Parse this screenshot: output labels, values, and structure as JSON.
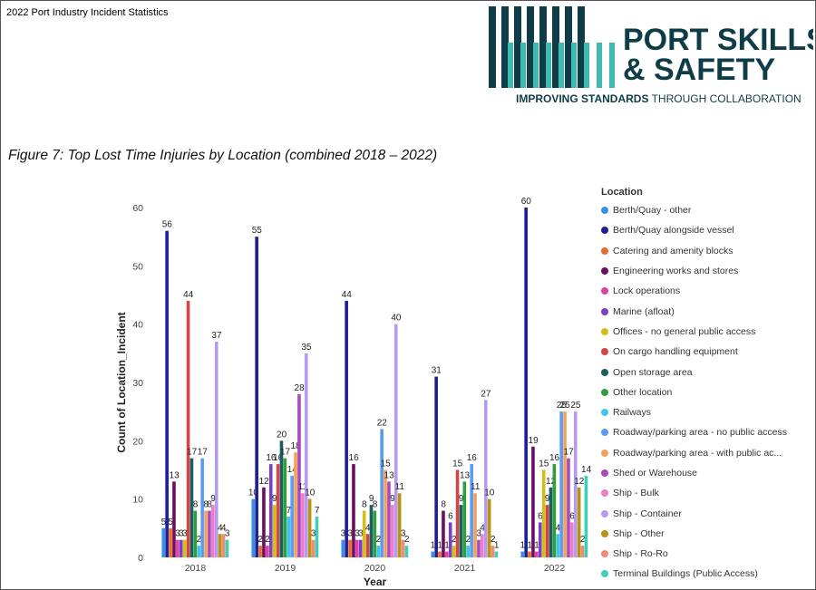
{
  "page": {
    "title": "2022 Port Industry Incident Statistics",
    "figure_caption": "Figure 7: Top Lost Time Injuries by Location (combined 2018 – 2022)"
  },
  "logo": {
    "line1": "PORT SKILLS",
    "line2": "& SAFETY",
    "tagline_bold": "IMPROVING STANDARDS",
    "tagline_rest": " THROUGH COLLABORATION",
    "colors": {
      "dark": "#0f3d47",
      "teal": "#41b8b0"
    }
  },
  "chart_data": {
    "type": "bar",
    "xlabel": "Year",
    "ylabel": "Count of Location_Incident",
    "ylim": [
      0,
      60
    ],
    "yticks": [
      0,
      10,
      20,
      30,
      40,
      50,
      60
    ],
    "legend_title": "Location",
    "legend_position": "right",
    "categories": [
      "2018",
      "2019",
      "2020",
      "2021",
      "2022"
    ],
    "series": [
      {
        "name": "Berth/Quay - other",
        "color": "#3a8ee6",
        "values": [
          5,
          10,
          3,
          1,
          1
        ]
      },
      {
        "name": "Berth/Quay alongside vessel",
        "color": "#1e1e96",
        "values": [
          56,
          55,
          44,
          31,
          60
        ]
      },
      {
        "name": "Catering and amenity blocks",
        "color": "#e86a2c",
        "values": [
          5,
          2,
          3,
          1,
          1
        ]
      },
      {
        "name": "Engineering works and stores",
        "color": "#6b0f5f",
        "values": [
          13,
          12,
          16,
          8,
          19
        ]
      },
      {
        "name": "Lock operations",
        "color": "#e040a8",
        "values": [
          3,
          2,
          3,
          1,
          1
        ]
      },
      {
        "name": "Marine (afloat)",
        "color": "#7b3fc4",
        "values": [
          3,
          16,
          3,
          6,
          6
        ]
      },
      {
        "name": "Offices - no general public access",
        "color": "#d3bd17",
        "values": [
          3,
          9,
          8,
          2,
          15
        ]
      },
      {
        "name": "On cargo handling equipment",
        "color": "#d64545",
        "values": [
          44,
          16,
          4,
          15,
          9
        ]
      },
      {
        "name": "Open storage area",
        "color": "#1c5f63",
        "values": [
          17,
          20,
          9,
          9,
          12
        ]
      },
      {
        "name": "Other location",
        "color": "#2f9e3b",
        "values": [
          8,
          17,
          8,
          13,
          16
        ]
      },
      {
        "name": "Railways",
        "color": "#41c4e8",
        "values": [
          2,
          7,
          2,
          2,
          4
        ]
      },
      {
        "name": "Roadway/parking area - no public access",
        "color": "#5a9cf5",
        "values": [
          17,
          14,
          22,
          16,
          25
        ]
      },
      {
        "name": "Roadway/parking area - with public ac...",
        "color": "#f0a25a",
        "values": [
          8,
          18,
          15,
          11,
          25
        ]
      },
      {
        "name": "Shed or Warehouse",
        "color": "#a94ab8",
        "values": [
          8,
          28,
          13,
          3,
          17
        ]
      },
      {
        "name": "Ship - Bulk",
        "color": "#ef7ad0",
        "values": [
          9,
          11,
          9,
          4,
          6
        ]
      },
      {
        "name": "Ship - Container",
        "color": "#b49af0",
        "values": [
          37,
          35,
          40,
          27,
          25
        ]
      },
      {
        "name": "Ship - Other",
        "color": "#b8930f",
        "values": [
          4,
          10,
          11,
          10,
          12
        ]
      },
      {
        "name": "Ship - Ro-Ro",
        "color": "#f08a7a",
        "values": [
          4,
          3,
          3,
          2,
          2
        ]
      },
      {
        "name": "Terminal Buildings (Public Access)",
        "color": "#3ecfb8",
        "values": [
          3,
          7,
          2,
          1,
          14
        ]
      }
    ]
  }
}
